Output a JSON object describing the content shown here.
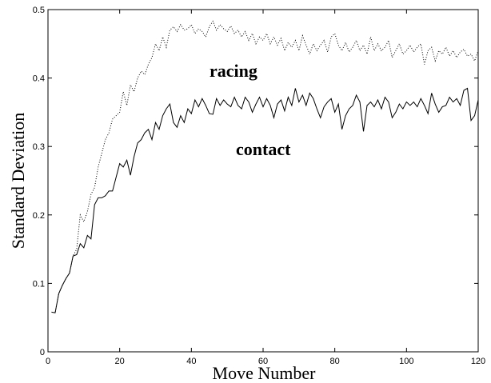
{
  "chart_data": {
    "type": "line",
    "xlabel": "Move Number",
    "ylabel": "Standard Deviation",
    "x": [
      1,
      2,
      3,
      4,
      5,
      6,
      7,
      8,
      9,
      10,
      11,
      12,
      13,
      14,
      15,
      16,
      17,
      18,
      19,
      20,
      21,
      22,
      23,
      24,
      25,
      26,
      27,
      28,
      29,
      30,
      31,
      32,
      33,
      34,
      35,
      36,
      37,
      38,
      39,
      40,
      41,
      42,
      43,
      44,
      45,
      46,
      47,
      48,
      49,
      50,
      51,
      52,
      53,
      54,
      55,
      56,
      57,
      58,
      59,
      60,
      61,
      62,
      63,
      64,
      65,
      66,
      67,
      68,
      69,
      70,
      71,
      72,
      73,
      74,
      75,
      76,
      77,
      78,
      79,
      80,
      81,
      82,
      83,
      84,
      85,
      86,
      87,
      88,
      89,
      90,
      91,
      92,
      93,
      94,
      95,
      96,
      97,
      98,
      99,
      100,
      101,
      102,
      103,
      104,
      105,
      106,
      107,
      108,
      109,
      110,
      111,
      112,
      113,
      114,
      115,
      116,
      117,
      118,
      119,
      120
    ],
    "series": [
      {
        "name": "racing",
        "color": "#000000",
        "linestyle": "dotted",
        "values": [
          0.058,
          0.057,
          0.085,
          0.097,
          0.107,
          0.115,
          0.14,
          0.15,
          0.2,
          0.19,
          0.205,
          0.23,
          0.24,
          0.27,
          0.29,
          0.31,
          0.32,
          0.34,
          0.345,
          0.35,
          0.38,
          0.36,
          0.39,
          0.38,
          0.4,
          0.41,
          0.405,
          0.42,
          0.43,
          0.45,
          0.44,
          0.46,
          0.445,
          0.47,
          0.475,
          0.468,
          0.478,
          0.47,
          0.472,
          0.478,
          0.465,
          0.472,
          0.468,
          0.46,
          0.475,
          0.483,
          0.47,
          0.478,
          0.472,
          0.468,
          0.476,
          0.465,
          0.47,
          0.46,
          0.468,
          0.455,
          0.465,
          0.45,
          0.46,
          0.455,
          0.465,
          0.45,
          0.46,
          0.448,
          0.458,
          0.44,
          0.452,
          0.445,
          0.455,
          0.44,
          0.462,
          0.448,
          0.435,
          0.45,
          0.44,
          0.448,
          0.455,
          0.438,
          0.46,
          0.465,
          0.448,
          0.44,
          0.452,
          0.438,
          0.445,
          0.455,
          0.44,
          0.448,
          0.435,
          0.46,
          0.44,
          0.45,
          0.44,
          0.445,
          0.455,
          0.43,
          0.44,
          0.45,
          0.435,
          0.44,
          0.448,
          0.438,
          0.445,
          0.45,
          0.42,
          0.44,
          0.445,
          0.425,
          0.44,
          0.435,
          0.445,
          0.432,
          0.44,
          0.43,
          0.438,
          0.442,
          0.432,
          0.435,
          0.425,
          0.44
        ]
      },
      {
        "name": "contact",
        "color": "#000000",
        "linestyle": "solid",
        "values": [
          0.058,
          0.057,
          0.085,
          0.097,
          0.107,
          0.115,
          0.14,
          0.142,
          0.158,
          0.152,
          0.17,
          0.165,
          0.215,
          0.225,
          0.225,
          0.228,
          0.235,
          0.235,
          0.255,
          0.275,
          0.27,
          0.28,
          0.258,
          0.285,
          0.305,
          0.31,
          0.32,
          0.325,
          0.31,
          0.335,
          0.325,
          0.345,
          0.355,
          0.362,
          0.335,
          0.328,
          0.345,
          0.335,
          0.355,
          0.348,
          0.368,
          0.358,
          0.37,
          0.36,
          0.348,
          0.347,
          0.37,
          0.36,
          0.368,
          0.362,
          0.358,
          0.372,
          0.36,
          0.355,
          0.372,
          0.365,
          0.35,
          0.362,
          0.372,
          0.358,
          0.37,
          0.36,
          0.342,
          0.362,
          0.368,
          0.352,
          0.372,
          0.36,
          0.385,
          0.365,
          0.375,
          0.36,
          0.378,
          0.37,
          0.355,
          0.342,
          0.358,
          0.365,
          0.37,
          0.35,
          0.362,
          0.325,
          0.345,
          0.355,
          0.36,
          0.375,
          0.365,
          0.322,
          0.36,
          0.365,
          0.358,
          0.368,
          0.355,
          0.372,
          0.365,
          0.342,
          0.35,
          0.362,
          0.355,
          0.365,
          0.36,
          0.365,
          0.358,
          0.37,
          0.36,
          0.348,
          0.378,
          0.362,
          0.35,
          0.358,
          0.36,
          0.372,
          0.365,
          0.37,
          0.36,
          0.382,
          0.385,
          0.338,
          0.345,
          0.368
        ]
      }
    ],
    "xlim": [
      0,
      120
    ],
    "xticks": [
      0,
      20,
      40,
      60,
      80,
      100,
      120
    ],
    "ylim": [
      0,
      0.5
    ],
    "yticks": [
      0,
      0.1,
      0.2,
      0.3,
      0.4,
      0.5
    ]
  }
}
